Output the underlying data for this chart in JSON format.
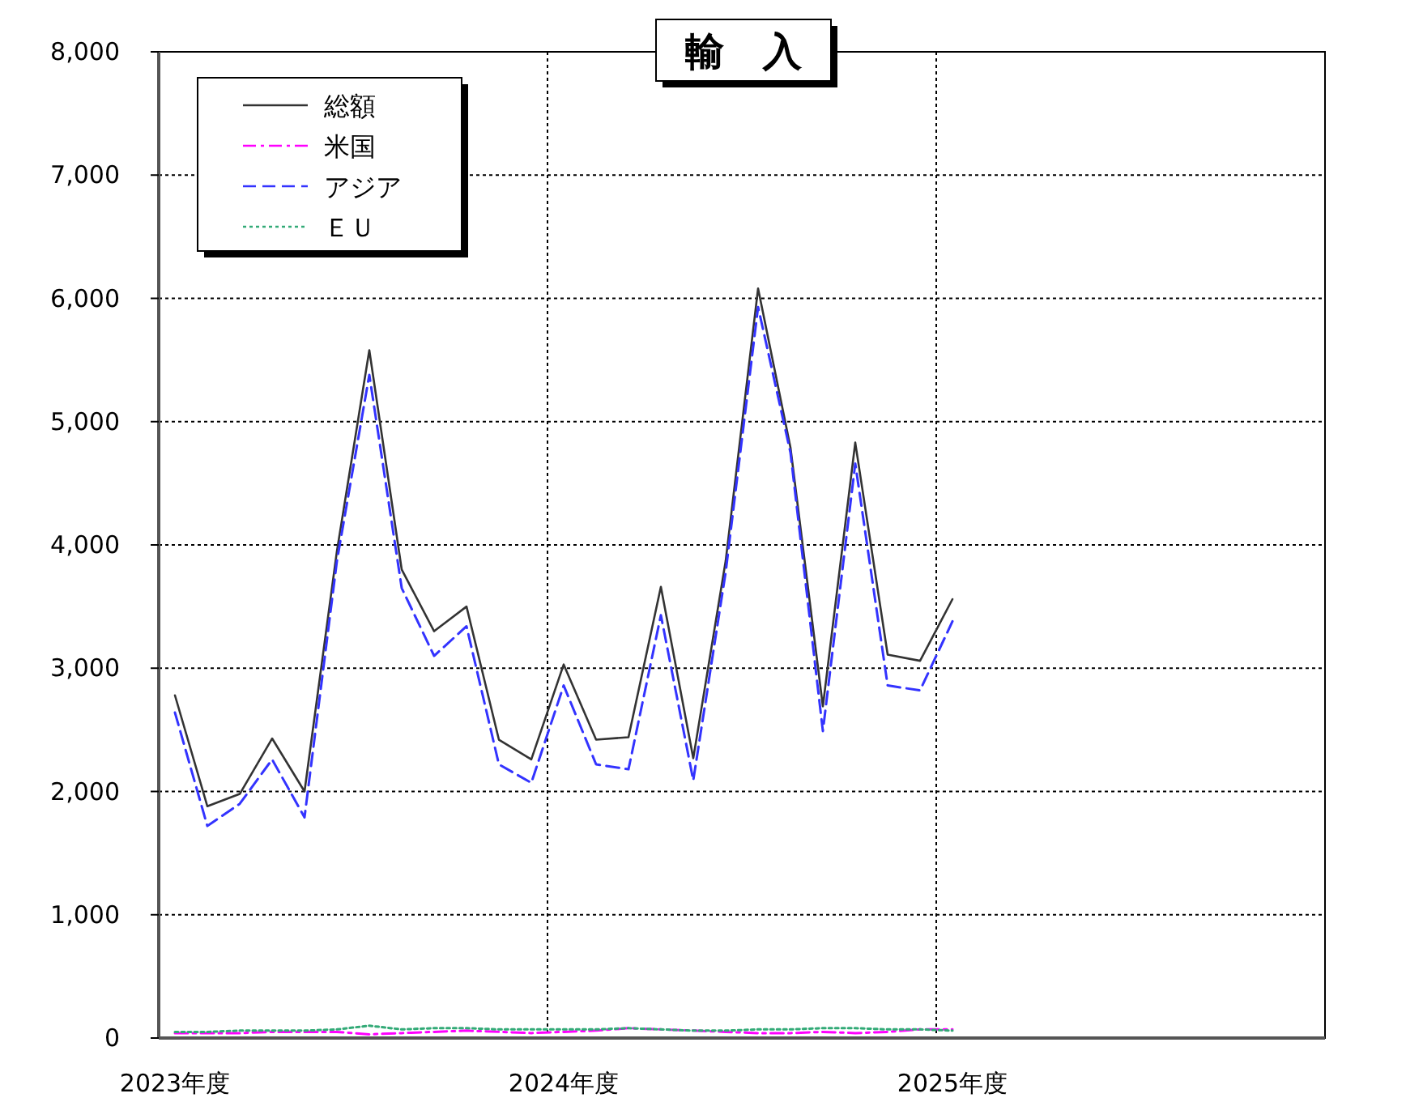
{
  "chart_data": {
    "type": "line",
    "title": "輸　入",
    "categories": [
      "2023年度",
      null,
      null,
      null,
      null,
      null,
      null,
      null,
      null,
      null,
      null,
      null,
      "2024年度",
      null,
      null,
      null,
      null,
      null,
      null,
      null,
      null,
      null,
      null,
      null,
      "2025年度",
      null,
      null,
      null,
      null,
      null,
      null,
      null,
      null,
      null,
      null,
      null
    ],
    "series": [
      {
        "name": "総額",
        "color": "#333333",
        "line_style": "solid",
        "values": [
          2780,
          1880,
          1980,
          2430,
          2000,
          3950,
          5580,
          3800,
          3300,
          3500,
          2420,
          2260,
          3030,
          2420,
          2440,
          3660,
          2270,
          3870,
          6080,
          4790,
          2690,
          4830,
          3110,
          3060,
          3560,
          null,
          null,
          null,
          null,
          null,
          null,
          null,
          null,
          null,
          null,
          null
        ]
      },
      {
        "name": "米国",
        "color": "#ff00ff",
        "line_style": "dashdot",
        "values": [
          40,
          40,
          40,
          50,
          50,
          50,
          30,
          40,
          50,
          60,
          50,
          40,
          50,
          60,
          80,
          70,
          60,
          50,
          40,
          40,
          50,
          40,
          50,
          70,
          70,
          null,
          null,
          null,
          null,
          null,
          null,
          null,
          null,
          null,
          null,
          null
        ]
      },
      {
        "name": "アジア",
        "color": "#3333ff",
        "line_style": "dashed",
        "values": [
          2640,
          1720,
          1900,
          2260,
          1790,
          3870,
          5380,
          3650,
          3100,
          3340,
          2220,
          2070,
          2860,
          2220,
          2180,
          3430,
          2090,
          3780,
          5930,
          4750,
          2490,
          4660,
          2860,
          2820,
          3380,
          null,
          null,
          null,
          null,
          null,
          null,
          null,
          null,
          null,
          null,
          null
        ]
      },
      {
        "name": "ＥＵ",
        "color": "#33aa77",
        "line_style": "dotted",
        "values": [
          50,
          50,
          60,
          60,
          60,
          70,
          100,
          70,
          80,
          80,
          70,
          70,
          70,
          70,
          80,
          70,
          60,
          60,
          70,
          70,
          80,
          80,
          70,
          70,
          60,
          null,
          null,
          null,
          null,
          null,
          null,
          null,
          null,
          null,
          null,
          null
        ]
      }
    ],
    "ylim": [
      0,
      8000
    ],
    "yticks": [
      0,
      {
        "value": 1000,
        "label": "1,000"
      },
      {
        "value": 2000,
        "label": "2,000"
      },
      {
        "value": 3000,
        "label": "3,000"
      },
      {
        "value": 4000,
        "label": "4,000"
      },
      {
        "value": 5000,
        "label": "5,000"
      },
      {
        "value": 6000,
        "label": "6,000"
      },
      {
        "value": 7000,
        "label": "7,000"
      },
      {
        "value": 8000,
        "label": "8,000"
      }
    ],
    "grid": true,
    "legend": "top left",
    "marker": "none"
  }
}
